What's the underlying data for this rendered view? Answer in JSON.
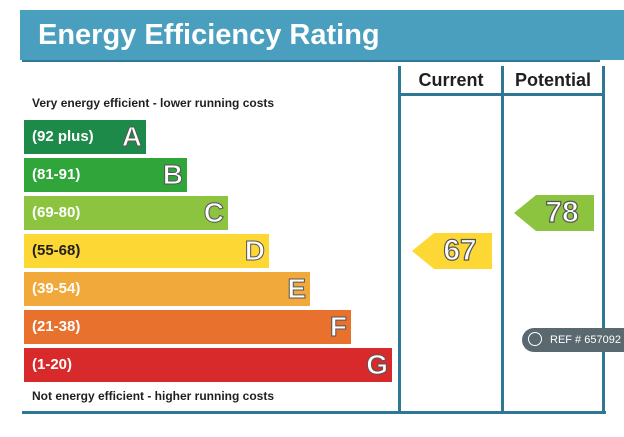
{
  "title": "Energy Efficiency Rating",
  "columns": {
    "current": "Current",
    "potential": "Potential"
  },
  "top_caption": "Very energy efficient - lower running costs",
  "bottom_caption": "Not energy efficient - higher running costs",
  "chart_data": {
    "type": "bar",
    "title": "Energy Efficiency Rating",
    "categories": [
      "A",
      "B",
      "C",
      "D",
      "E",
      "F",
      "G"
    ],
    "bands": [
      {
        "letter": "A",
        "range": "(92 plus)",
        "color": "#1e8a4a"
      },
      {
        "letter": "B",
        "range": "(81-91)",
        "color": "#2fa53a"
      },
      {
        "letter": "C",
        "range": "(69-80)",
        "color": "#8cc43f"
      },
      {
        "letter": "D",
        "range": "(55-68)",
        "color": "#fdd835"
      },
      {
        "letter": "E",
        "range": "(39-54)",
        "color": "#f2a93b"
      },
      {
        "letter": "F",
        "range": "(21-38)",
        "color": "#e8712e"
      },
      {
        "letter": "G",
        "range": "(1-20)",
        "color": "#d82a2a"
      }
    ],
    "current": {
      "value": "67",
      "band": "D",
      "color": "#fdd835"
    },
    "potential": {
      "value": "78",
      "band": "C",
      "color": "#8cc43f"
    }
  },
  "ref_badge": "REF # 657092"
}
